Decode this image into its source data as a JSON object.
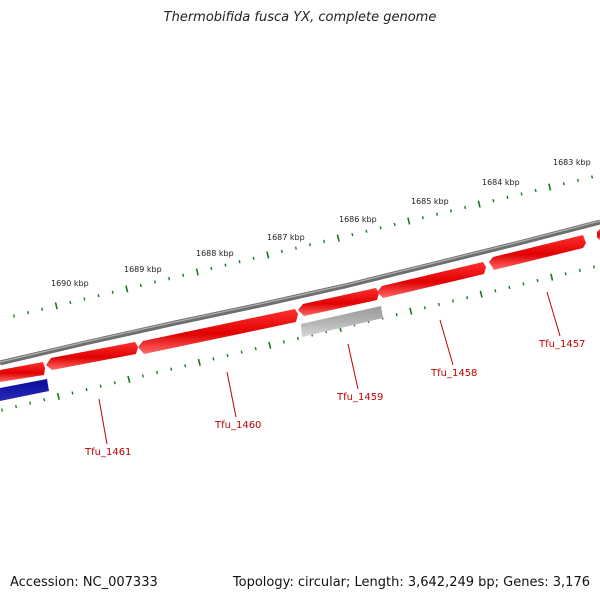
{
  "title": "Thermobifida fusca YX, complete genome",
  "accession": "Accession: NC_007333",
  "summary": "Topology: circular; Length: 3,642,249 bp; Genes: 3,176",
  "scale": {
    "ticks": [
      {
        "label": "1683 kbp"
      },
      {
        "label": "1684 kbp"
      },
      {
        "label": "1685 kbp"
      },
      {
        "label": "1686 kbp"
      },
      {
        "label": "1687 kbp"
      },
      {
        "label": "1688 kbp"
      },
      {
        "label": "1689 kbp"
      },
      {
        "label": "1690 kbp"
      }
    ]
  },
  "genes": [
    {
      "name": "Tfu_1457",
      "strand": "reverse",
      "color": "#e00000"
    },
    {
      "name": "Tfu_1458",
      "strand": "reverse",
      "color": "#e00000"
    },
    {
      "name": "Tfu_1459",
      "strand": "reverse",
      "color": "#a9a9a9"
    },
    {
      "name": "Tfu_1460",
      "strand": "reverse",
      "color": "#e00000"
    },
    {
      "name": "Tfu_1461",
      "strand": "reverse",
      "color": "#000080"
    }
  ],
  "colors": {
    "backbone": "#808080",
    "tick": "#1a7a1a",
    "label": "#c00000"
  }
}
